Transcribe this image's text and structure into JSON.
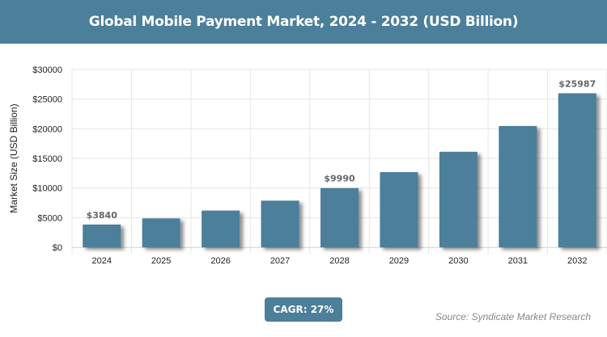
{
  "header": {
    "title": "Global Mobile Payment Market, 2024 - 2032 (USD Billion)"
  },
  "chart_data": {
    "type": "bar",
    "title": "Global Mobile Payment Market, 2024 - 2032 (USD Billion)",
    "xlabel": "",
    "ylabel": "Market Size (USD Billion)",
    "ylim": [
      0,
      30000
    ],
    "yticks": [
      "$0",
      "$5000",
      "$10000",
      "$15000",
      "$20000",
      "$25000",
      "$30000"
    ],
    "categories": [
      "2024",
      "2025",
      "2026",
      "2027",
      "2028",
      "2029",
      "2030",
      "2031",
      "2032"
    ],
    "values": [
      3840,
      4877,
      6193,
      7866,
      9990,
      12687,
      16113,
      20463,
      25987
    ],
    "data_labels": {
      "2024": "$3840",
      "2028": "$9990",
      "2032": "$25987"
    },
    "grid": true,
    "bar_color": "#4c7f9a"
  },
  "footer": {
    "cagr": "CAGR: 27%",
    "source": "Source: Syndicate Market Research"
  }
}
